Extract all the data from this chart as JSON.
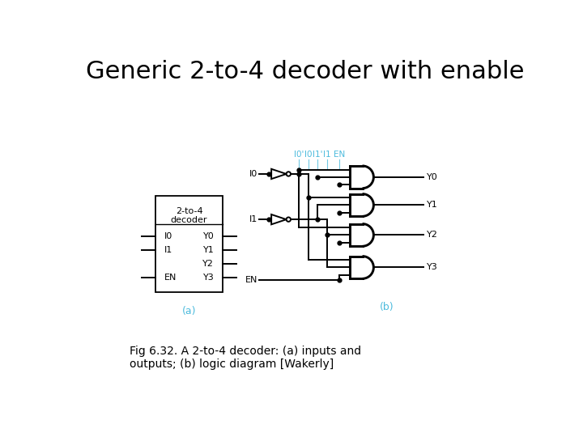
{
  "title": "Generic 2-to-4 decoder with enable",
  "title_fontsize": 22,
  "title_fontweight": "normal",
  "caption": "Fig 6.32. A 2-to-4 decoder: (a) inputs and\noutputs; (b) logic diagram [Wakerly]",
  "caption_fontsize": 10,
  "bg_color": "#ffffff",
  "label_a": "(a)",
  "label_b": "(b)",
  "cyan_color": "#4DBBDD",
  "black_color": "#000000"
}
